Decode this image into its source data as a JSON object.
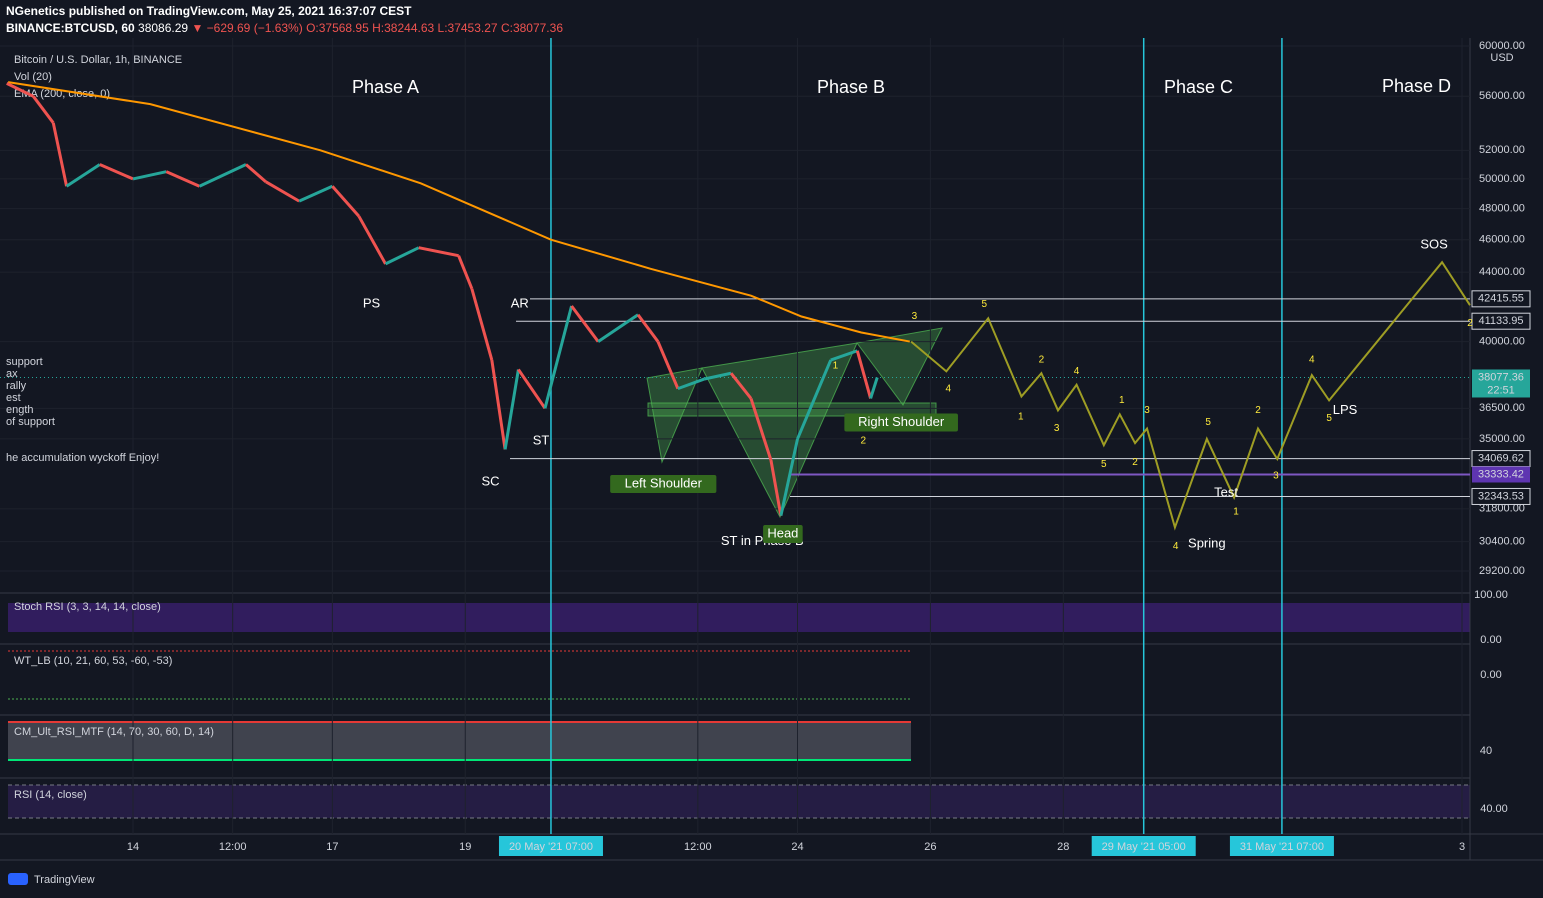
{
  "header": {
    "line1": "NGenetics published on TradingView.com, May 25, 2021 16:37:07 CEST",
    "symbol": "BINANCE:BTCUSD, 60",
    "last": "38086.29",
    "change": "▼ −629.69 (−1.63%)",
    "open": "O:37568.95",
    "high": "H:38244.63",
    "low": "L:37453.27",
    "close": "C:38077.36"
  },
  "legend": {
    "title": "Bitcoin / U.S. Dollar, 1h, BINANCE",
    "vol": "Vol (20)",
    "ema": "EMA (200, close, 0)",
    "notes": [
      "support",
      "ax",
      "rally",
      "est",
      "ength",
      "of support",
      "he accumulation wyckoff  Enjoy!"
    ]
  },
  "phases": [
    "Phase A",
    "Phase B",
    "Phase C",
    "Phase D"
  ],
  "price_scale": {
    "currency": "USD",
    "ticks": [
      {
        "value": 60000,
        "label": "60000.00"
      },
      {
        "value": 56000,
        "label": "56000.00"
      },
      {
        "value": 52000,
        "label": "52000.00"
      },
      {
        "value": 50000,
        "label": "50000.00"
      },
      {
        "value": 48000,
        "label": "48000.00"
      },
      {
        "value": 46000,
        "label": "46000.00"
      },
      {
        "value": 44000,
        "label": "44000.00"
      },
      {
        "value": 40000,
        "label": "40000.00"
      },
      {
        "value": 36500,
        "label": "36500.00"
      },
      {
        "value": 35000,
        "label": "35000.00"
      },
      {
        "value": 31800,
        "label": "31800.00"
      },
      {
        "value": 30400,
        "label": "30400.00"
      },
      {
        "value": 29200,
        "label": "29200.00"
      }
    ],
    "levels": [
      42415.55,
      41133.95,
      34069.62,
      33333.42,
      32343.53
    ],
    "current": 38077.36,
    "countdown": "22:51"
  },
  "time_scale": {
    "ticks": [
      14,
      {
        "value": 15.5,
        "label": "12:00"
      },
      17,
      19,
      {
        "value": 22.5,
        "label": "12:00"
      },
      24,
      26,
      28,
      {
        "value": 34,
        "label": "3"
      }
    ],
    "markers": [
      {
        "x": 20.29,
        "label": "20 May '21   07:00"
      },
      {
        "x": 29.21,
        "label": "29 May '21   05:00"
      },
      {
        "x": 31.29,
        "label": "31 May '21   07:00"
      }
    ]
  },
  "price": {
    "x": [
      12.1,
      12.5,
      12.8,
      13.0,
      13.5,
      14.0,
      14.5,
      15.0,
      15.7,
      16.0,
      16.5,
      17.0,
      17.4,
      17.8,
      18.3,
      18.9,
      19.1,
      19.4,
      19.6,
      19.8,
      20.2,
      20.6,
      21.0,
      21.6,
      21.9,
      22.2,
      22.6,
      23.0,
      23.3,
      23.6,
      23.75,
      24.0,
      24.5,
      24.9,
      25.1,
      25.2
    ],
    "values": [
      57000,
      56000,
      54000,
      49500,
      51000,
      50000,
      50500,
      49500,
      51000,
      49800,
      48500,
      49500,
      47500,
      44500,
      45500,
      45000,
      43000,
      39000,
      34500,
      38500,
      36500,
      42000,
      40000,
      41500,
      40000,
      37500,
      38000,
      38300,
      37000,
      34000,
      31500,
      35000,
      39000,
      39500,
      37000,
      38077
    ]
  },
  "ema": {
    "x": [
      12.12,
      14.26,
      16.82,
      18.33,
      20.29,
      21.79,
      23.3,
      24.06,
      24.96,
      25.69
    ],
    "values": [
      57100,
      55400,
      52000,
      49700,
      46000,
      44200,
      42600,
      41400,
      40500,
      40000
    ]
  },
  "projection": {
    "x": [
      25.71,
      26.24,
      26.87,
      27.37,
      27.67,
      27.92,
      28.2,
      28.61,
      28.85,
      29.08,
      29.26,
      29.68,
      30.16,
      30.57,
      30.93,
      31.22,
      31.74,
      32.0,
      33.7,
      34.12
    ],
    "values": [
      40000,
      38400,
      41300,
      37100,
      38300,
      36400,
      37700,
      34700,
      36200,
      34800,
      35500,
      31000,
      35000,
      32300,
      35500,
      34050,
      38200,
      36900,
      44600,
      42050
    ]
  },
  "annotations": [
    {
      "text": "PS",
      "x": 17.59,
      "y": 42100
    },
    {
      "text": "AR",
      "x": 19.82,
      "y": 42100
    },
    {
      "text": "ST",
      "x": 20.14,
      "y": 34900
    },
    {
      "text": "SC",
      "x": 19.38,
      "y": 33000
    },
    {
      "text": "ST in Phase B",
      "x": 23.47,
      "y": 30400
    },
    {
      "text": "Spring",
      "x": 30.16,
      "y": 30300
    },
    {
      "text": "Test",
      "x": 30.45,
      "y": 32500
    },
    {
      "text": "LPS",
      "x": 32.24,
      "y": 36400
    },
    {
      "text": "SOS",
      "x": 33.58,
      "y": 45660
    }
  ],
  "pattern_labels": [
    {
      "text": "Left Shoulder",
      "x": 21.98,
      "y": 32900
    },
    {
      "text": "Head",
      "x": 23.78,
      "y": 30720
    },
    {
      "text": "Right Shoulder",
      "x": 25.56,
      "y": 35800
    }
  ],
  "waves": [
    {
      "text": "1",
      "x": 24.57,
      "y": 38700
    },
    {
      "text": "2",
      "x": 24.99,
      "y": 34900
    },
    {
      "text": "3",
      "x": 25.76,
      "y": 41400
    },
    {
      "text": "4",
      "x": 26.27,
      "y": 37480
    },
    {
      "text": "5",
      "x": 26.81,
      "y": 42100
    },
    {
      "text": "1",
      "x": 27.36,
      "y": 36070
    },
    {
      "text": "2",
      "x": 27.67,
      "y": 39000
    },
    {
      "text": "3",
      "x": 27.9,
      "y": 35500
    },
    {
      "text": "4",
      "x": 28.2,
      "y": 38400
    },
    {
      "text": "5",
      "x": 28.61,
      "y": 33800
    },
    {
      "text": "1",
      "x": 28.88,
      "y": 36900
    },
    {
      "text": "2",
      "x": 29.08,
      "y": 33900
    },
    {
      "text": "3",
      "x": 29.26,
      "y": 36400
    },
    {
      "text": "4",
      "x": 29.69,
      "y": 30200
    },
    {
      "text": "5",
      "x": 30.18,
      "y": 35800
    },
    {
      "text": "1",
      "x": 30.6,
      "y": 31670
    },
    {
      "text": "2",
      "x": 30.93,
      "y": 36400
    },
    {
      "text": "3",
      "x": 31.2,
      "y": 33260
    },
    {
      "text": "4",
      "x": 31.74,
      "y": 39000
    },
    {
      "text": "5",
      "x": 32.0,
      "y": 36000
    },
    {
      "text": "2",
      "x": 34.12,
      "y": 41000
    }
  ],
  "indicators": [
    {
      "label": "Stoch RSI (3, 3, 14, 14, close)",
      "ticks": [
        {
          "value": 100,
          "label": "100.00"
        },
        {
          "value": 0,
          "label": "0.00"
        }
      ]
    },
    {
      "label": "WT_LB (10, 21, 60, 53, -60, -53)",
      "ticks": [
        {
          "value": 0,
          "label": "0.00"
        }
      ]
    },
    {
      "label": "CM_Ult_RSI_MTF (14, 70, 30, 60, D, 14)",
      "ticks": [
        40
      ]
    },
    {
      "label": "RSI (14, close)",
      "ticks": [
        {
          "value": 40,
          "label": "40.00"
        }
      ]
    }
  ],
  "footer": "TradingView"
}
